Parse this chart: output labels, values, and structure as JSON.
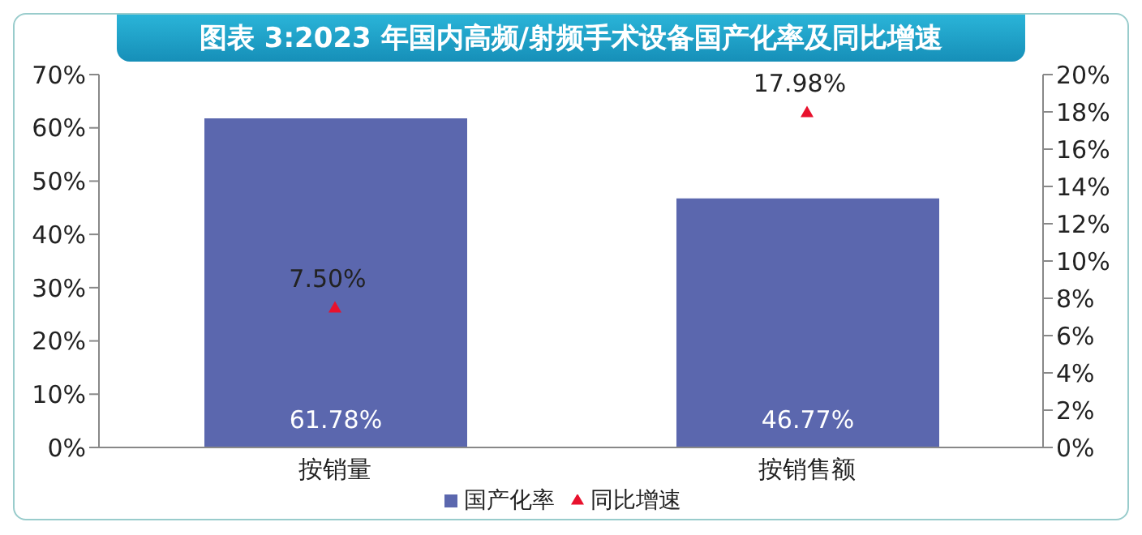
{
  "chart_data": {
    "type": "bar",
    "title": "图表 3:2023 年国内高频/射频手术设备国产化率及同比增速",
    "categories": [
      "按销量",
      "按销售额"
    ],
    "series": [
      {
        "name": "国产化率",
        "color": "#5b67ae",
        "values": [
          61.78,
          46.77
        ],
        "value_labels": [
          "61.78%",
          "46.77%"
        ]
      },
      {
        "name": "同比增速",
        "type": "scatter",
        "axis": "y2",
        "color": "#e8112d",
        "values": [
          7.5,
          17.98
        ],
        "value_labels": [
          "7.50%",
          "17.98%"
        ]
      }
    ],
    "ylim": [
      0,
      70
    ],
    "yticks": [
      {
        "value": 0,
        "label": "0%"
      },
      {
        "value": 10,
        "label": "10%"
      },
      {
        "value": 20,
        "label": "20%"
      },
      {
        "value": 30,
        "label": "30%"
      },
      {
        "value": 40,
        "label": "40%"
      },
      {
        "value": 50,
        "label": "50%"
      },
      {
        "value": 60,
        "label": "60%"
      },
      {
        "value": 70,
        "label": "70%"
      }
    ],
    "y2lim": [
      0,
      20
    ],
    "y2ticks": [
      {
        "value": 0,
        "label": "0%"
      },
      {
        "value": 2,
        "label": "2%"
      },
      {
        "value": 4,
        "label": "4%"
      },
      {
        "value": 6,
        "label": "6%"
      },
      {
        "value": 8,
        "label": "8%"
      },
      {
        "value": 10,
        "label": "10%"
      },
      {
        "value": 12,
        "label": "12%"
      },
      {
        "value": 14,
        "label": "14%"
      },
      {
        "value": 16,
        "label": "16%"
      },
      {
        "value": 18,
        "label": "18%"
      },
      {
        "value": 20,
        "label": "20%"
      }
    ],
    "marker": "triangle",
    "legend": "bottom"
  }
}
